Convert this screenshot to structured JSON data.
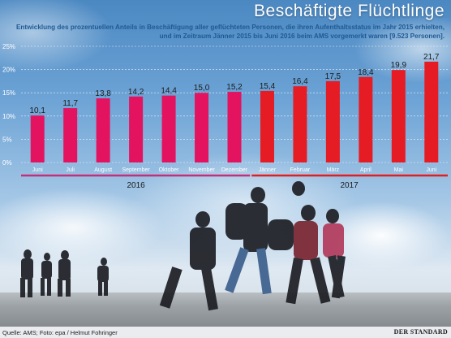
{
  "header": {
    "title": "Beschäftigte Flüchtlinge",
    "subtitle": "Entwicklung des prozentuellen Anteils in Beschäftigung aller geflüchteten Personen, die ihren Aufenthaltsstatus im Jahr 2015 erhielten, und im Zeitraum Jänner 2015 bis Juni 2016 beim AMS vorgemerkt waren [9.523 Personen]."
  },
  "footer": {
    "credit": "Quelle: AMS; Foto: epa / Helmut Fohringer",
    "brand": "DER STANDARD"
  },
  "colors": {
    "bar_2016": "#e4135f",
    "bar_2017": "#e51c24",
    "axis_text": "#ffffff",
    "year_line_2016": "#c2307a",
    "year_line_2017": "#e02020"
  },
  "chart_data": {
    "type": "bar",
    "categories": [
      "Juni",
      "Juli",
      "August",
      "September",
      "Oktober",
      "November",
      "Dezember",
      "Jänner",
      "Februar",
      "März",
      "April",
      "Mai",
      "Juni"
    ],
    "values": [
      10.1,
      11.7,
      13.8,
      14.2,
      14.4,
      15.0,
      15.2,
      15.4,
      16.4,
      17.5,
      18.4,
      19.9,
      21.7
    ],
    "value_labels": [
      "10,1",
      "11,7",
      "13,8",
      "14,2",
      "14,4",
      "15,0",
      "15,2",
      "15,4",
      "16,4",
      "17,5",
      "18,4",
      "19,9",
      "21,7"
    ],
    "year_groups": [
      {
        "label": "2016",
        "count": 7
      },
      {
        "label": "2017",
        "count": 6
      }
    ],
    "y_ticks": [
      0,
      5,
      10,
      15,
      20,
      25
    ],
    "y_tick_labels": [
      "0%",
      "5%",
      "10%",
      "15%",
      "20%",
      "25%"
    ],
    "ylim": [
      0,
      25
    ],
    "grid": true,
    "xlabel": "",
    "ylabel": ""
  }
}
